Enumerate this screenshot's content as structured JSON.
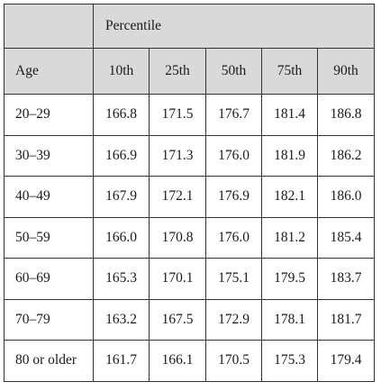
{
  "table": {
    "group_header": "Percentile",
    "row_header": "Age",
    "columns": [
      "10th",
      "25th",
      "50th",
      "75th",
      "90th"
    ],
    "rows": [
      {
        "age": "20–29",
        "values": [
          "166.8",
          "171.5",
          "176.7",
          "181.4",
          "186.8"
        ]
      },
      {
        "age": "30–39",
        "values": [
          "166.9",
          "171.3",
          "176.0",
          "181.9",
          "186.2"
        ]
      },
      {
        "age": "40–49",
        "values": [
          "167.9",
          "172.1",
          "176.9",
          "182.1",
          "186.0"
        ]
      },
      {
        "age": "50–59",
        "values": [
          "166.0",
          "170.8",
          "176.0",
          "181.2",
          "185.4"
        ]
      },
      {
        "age": "60–69",
        "values": [
          "165.3",
          "170.1",
          "175.1",
          "179.5",
          "183.7"
        ]
      },
      {
        "age": "70–79",
        "values": [
          "163.2",
          "167.5",
          "172.9",
          "178.1",
          "181.7"
        ]
      },
      {
        "age": "80 or older",
        "values": [
          "161.7",
          "166.1",
          "170.5",
          "175.3",
          "179.4"
        ]
      }
    ]
  },
  "colors": {
    "header_background": "#d9d9d9",
    "border": "#333333"
  }
}
